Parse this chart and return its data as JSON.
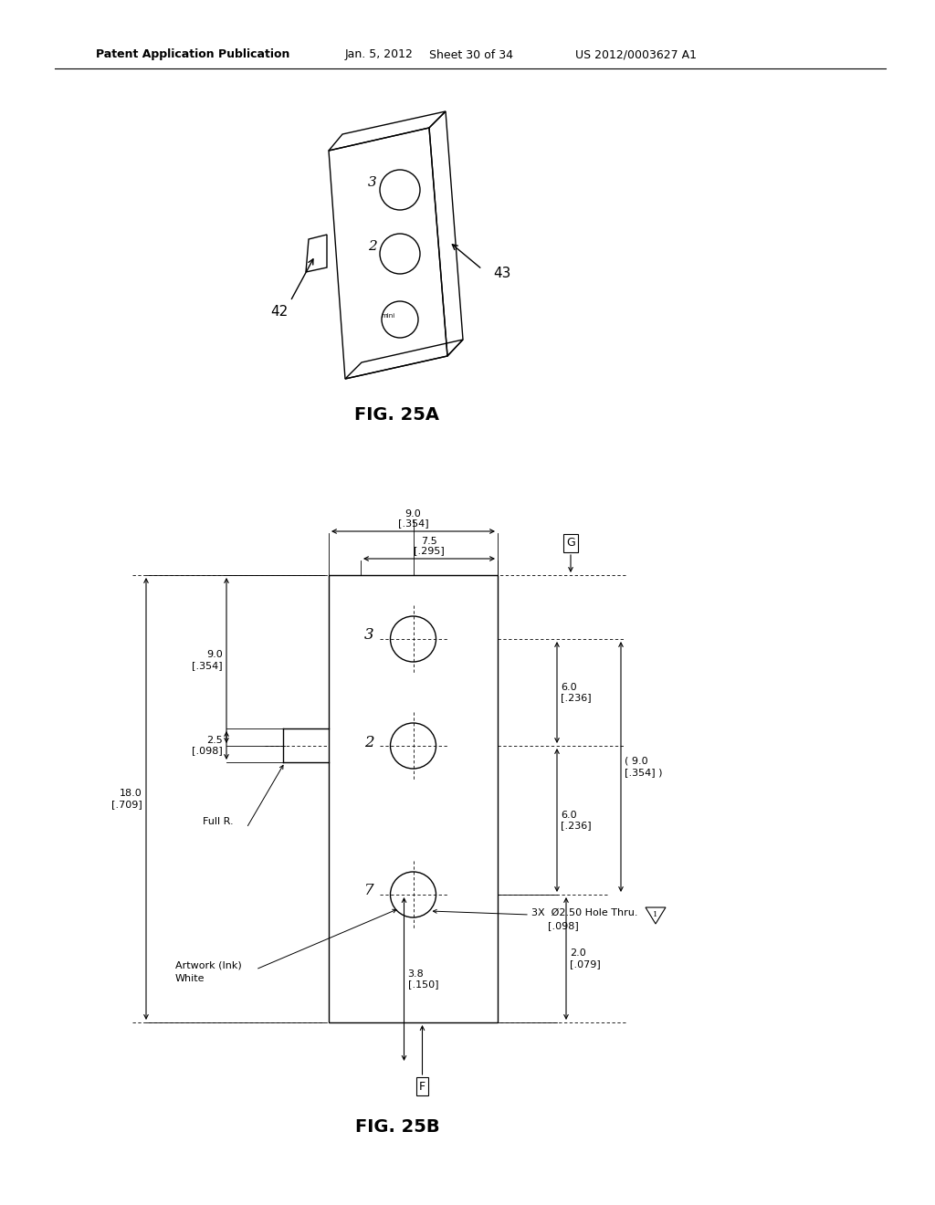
{
  "bg_color": "#ffffff",
  "header_text": "Patent Application Publication",
  "header_date": "Jan. 5, 2012",
  "header_sheet": "Sheet 30 of 34",
  "header_patent": "US 2012/0003627 A1",
  "fig25a_label": "FIG. 25A",
  "fig25b_label": "FIG. 25B",
  "label_42": "42",
  "label_43": "43"
}
